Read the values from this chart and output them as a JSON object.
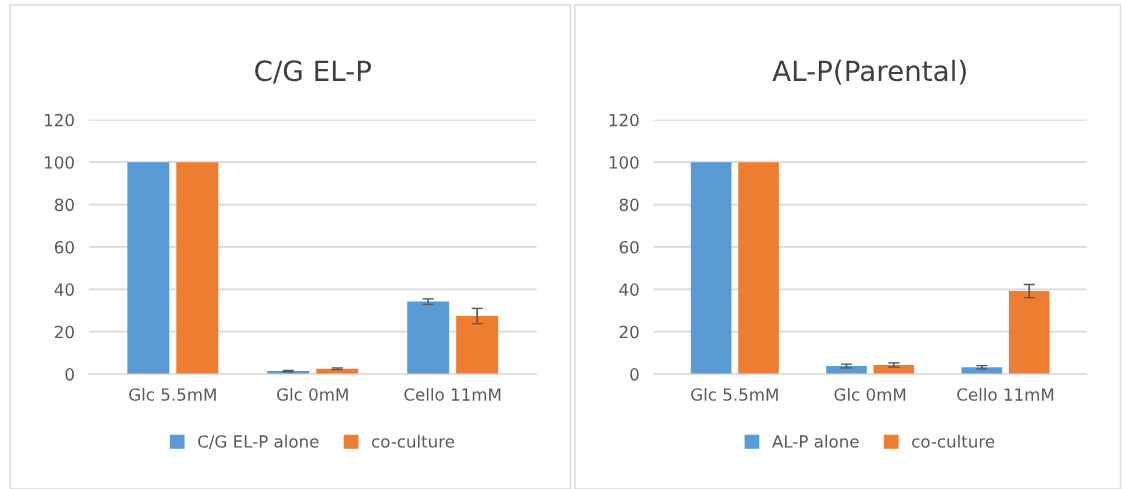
{
  "chart_data": [
    {
      "type": "bar",
      "title": "C/G EL-P",
      "categories": [
        "Glc 5.5mM",
        "Glc 0mM",
        "Cello 11mM"
      ],
      "series": [
        {
          "name": "C/G EL-P alone",
          "color": "#5b9bd5",
          "values": [
            100,
            1.4,
            34.2
          ],
          "errors": [
            null,
            0.3,
            1.3
          ]
        },
        {
          "name": "co-culture",
          "color": "#ed7d31",
          "values": [
            100,
            2.5,
            27.4
          ],
          "errors": [
            null,
            0.4,
            3.6
          ]
        }
      ],
      "ylim": [
        0,
        120
      ],
      "yticks": [
        0,
        20,
        40,
        60,
        80,
        100,
        120
      ],
      "grid": "y",
      "legend": "bottom"
    },
    {
      "type": "bar",
      "title": "AL-P(Parental)",
      "categories": [
        "Glc 5.5mM",
        "Glc 0mM",
        "Cello 11mM"
      ],
      "series": [
        {
          "name": "AL-P alone",
          "color": "#5b9bd5",
          "values": [
            100,
            3.8,
            3.2
          ],
          "errors": [
            null,
            0.9,
            0.8
          ]
        },
        {
          "name": "co-culture",
          "color": "#ed7d31",
          "values": [
            100,
            4.3,
            39.2
          ],
          "errors": [
            null,
            1.0,
            3.1
          ]
        }
      ],
      "ylim": [
        0,
        120
      ],
      "yticks": [
        0,
        20,
        40,
        60,
        80,
        100,
        120
      ],
      "grid": "y",
      "legend": "bottom"
    }
  ]
}
